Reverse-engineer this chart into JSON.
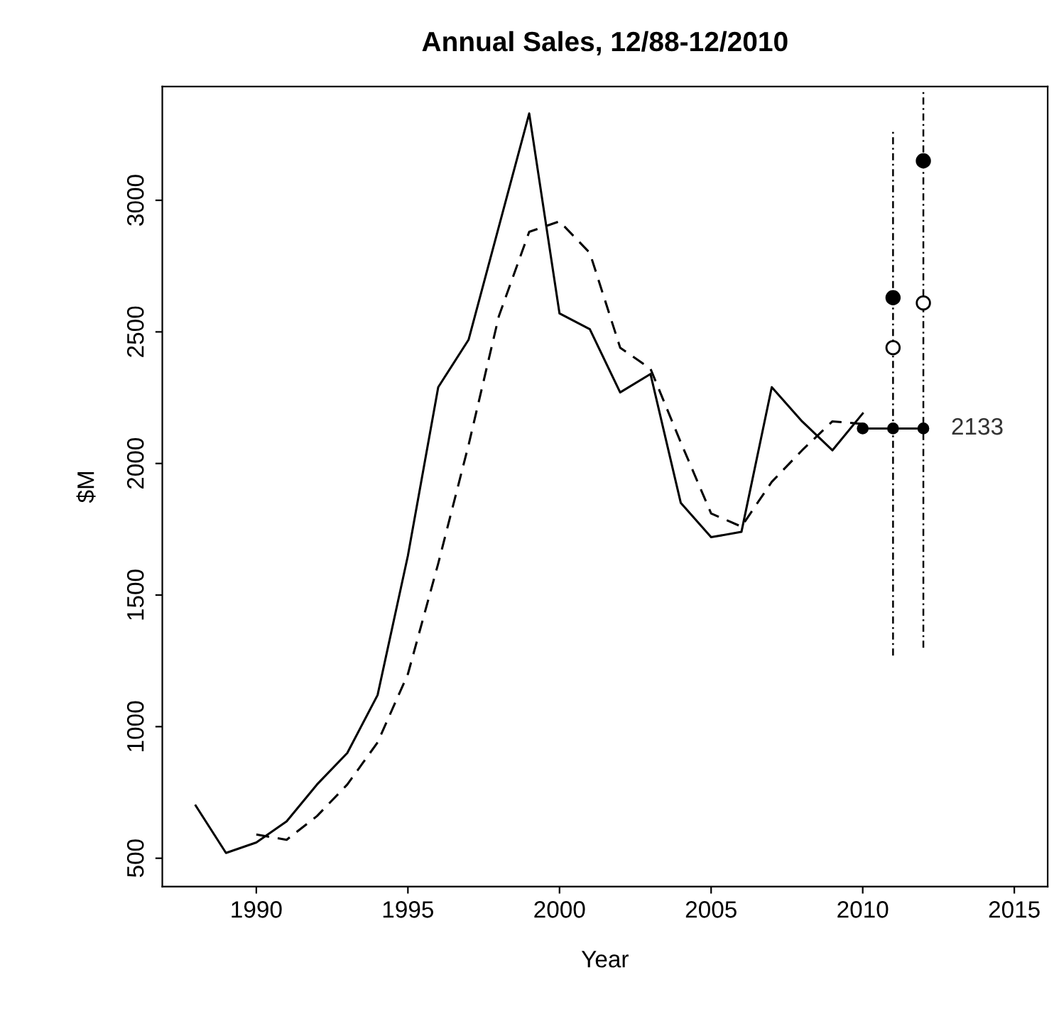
{
  "chart_data": {
    "type": "line",
    "title": "Annual Sales, 12/88-12/2010",
    "xlabel": "Year",
    "ylabel": "$M",
    "xlim": [
      1986.9,
      2016.1
    ],
    "ylim": [
      392,
      3432
    ],
    "xticks": [
      1990,
      1995,
      2000,
      2005,
      2010,
      2015
    ],
    "yticks": [
      500,
      1000,
      1500,
      2000,
      2500,
      3000
    ],
    "grid": false,
    "legend": false,
    "series": [
      {
        "color": "#000000",
        "line_style": "solid",
        "marker": "none",
        "x": [
          1988,
          1989,
          1990,
          1991,
          1992,
          1993,
          1994,
          1995,
          1996,
          1997,
          1998,
          1999,
          2000,
          2001,
          2002,
          2003,
          2004,
          2005,
          2006,
          2007,
          2008,
          2009,
          2010
        ],
        "values": [
          700,
          520,
          560,
          640,
          780,
          900,
          1120,
          1650,
          2290,
          2470,
          2900,
          3330,
          2570,
          2510,
          2270,
          2340,
          1850,
          1720,
          1740,
          2290,
          2160,
          2050,
          2190
        ]
      },
      {
        "color": "#000000",
        "line_style": "dashed",
        "marker": "none",
        "x": [
          1990,
          1991,
          1992,
          1993,
          1994,
          1995,
          1996,
          1997,
          1998,
          1999,
          2000,
          2001,
          2002,
          2003,
          2004,
          2005,
          2006,
          2007,
          2008,
          2009,
          2010
        ],
        "values": [
          590,
          570,
          660,
          780,
          940,
          1200,
          1620,
          2070,
          2560,
          2880,
          2920,
          2800,
          2440,
          2360,
          2080,
          1810,
          1760,
          1930,
          2050,
          2160,
          2150
        ]
      },
      {
        "color": "#000000",
        "line_style": "solid",
        "marker": "circle",
        "x": [
          2010,
          2011,
          2012
        ],
        "values": [
          2133,
          2133,
          2133
        ],
        "errors": [
          null,
          [
            1270,
            3270
          ],
          [
            1300,
            3420
          ]
        ]
      },
      {
        "type": "scatter",
        "color": "#000000",
        "marker": "circle",
        "x": [
          2011,
          2012
        ],
        "values": [
          2630,
          3150
        ]
      },
      {
        "type": "scatter",
        "color": "#ffffff",
        "marker": "circle",
        "x": [
          2011,
          2012
        ],
        "values": [
          2440,
          2610
        ]
      }
    ],
    "annotations": [
      {
        "text": "2133",
        "x": 2012,
        "y": 2133
      }
    ]
  }
}
